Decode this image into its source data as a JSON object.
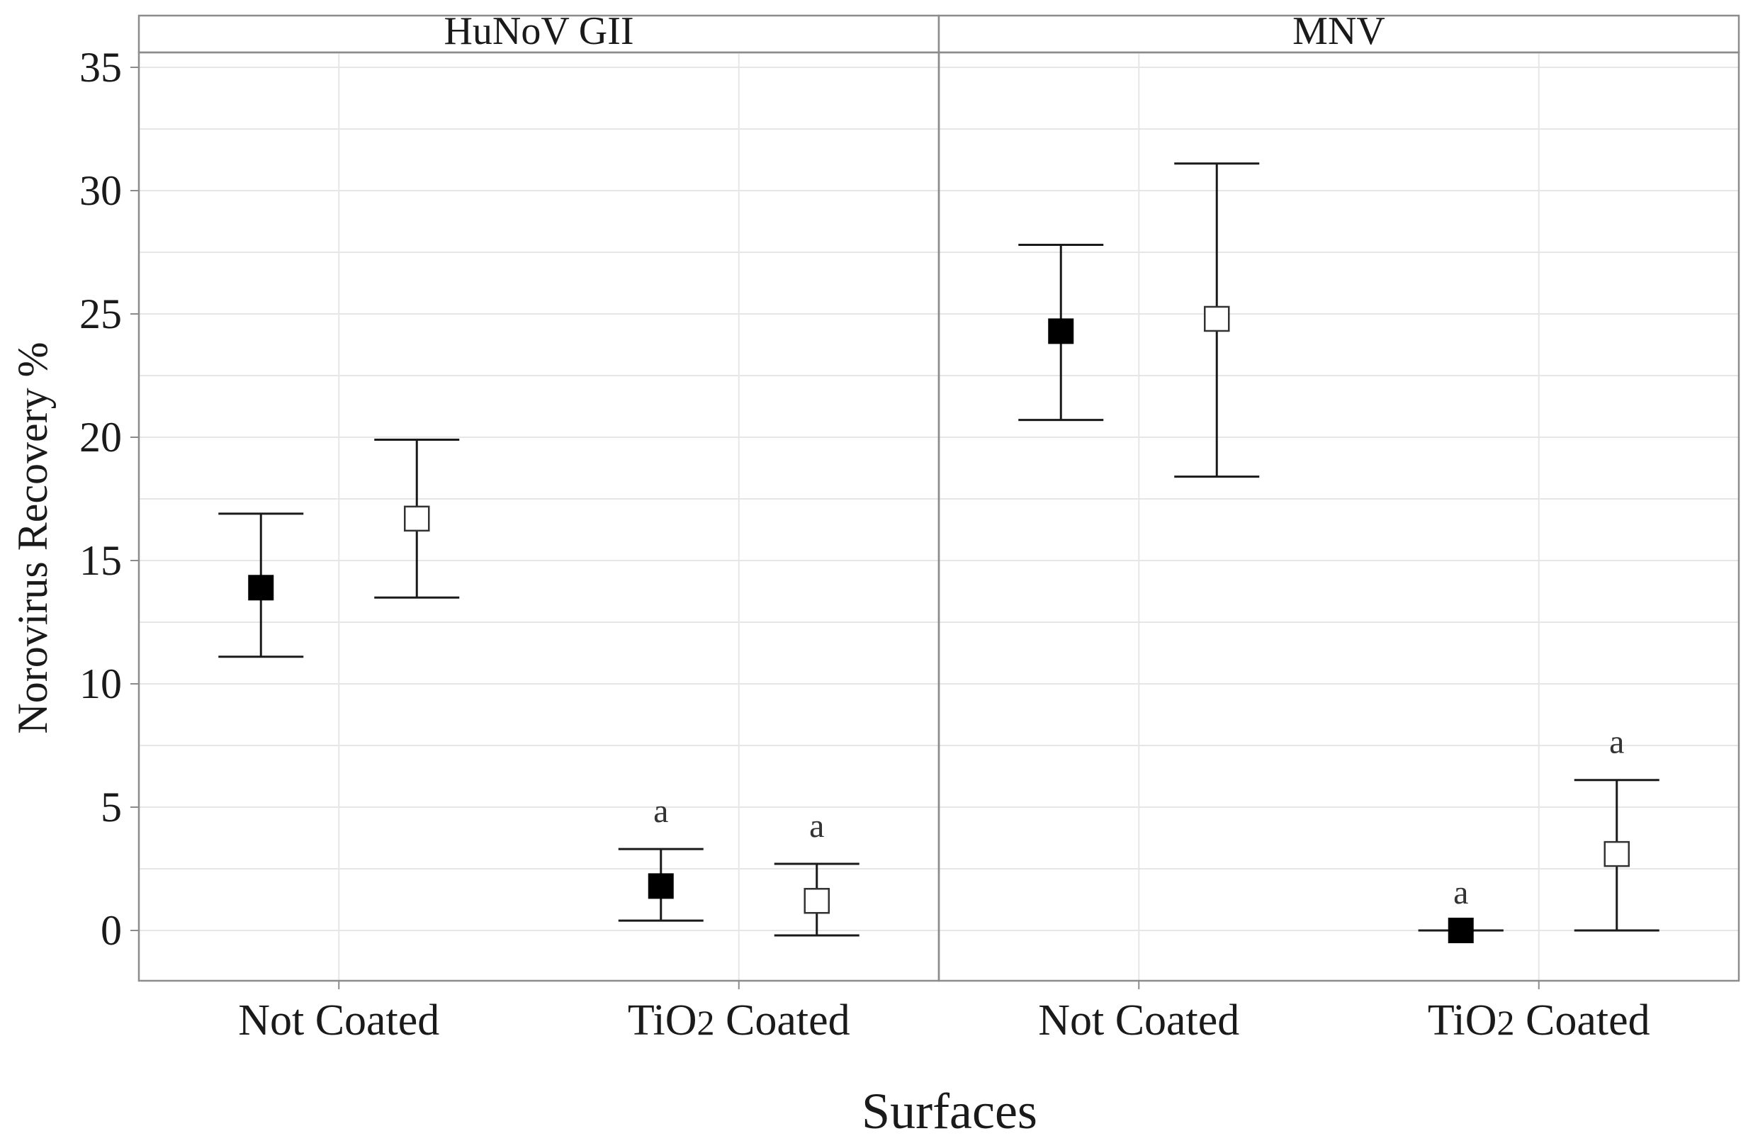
{
  "chart_data": {
    "type": "scatter",
    "ylabel": "Norovirus Recovery %",
    "xlabel": "Surfaces",
    "ylim": [
      -2,
      35.5
    ],
    "y_ticks": [
      0,
      5,
      10,
      15,
      20,
      25,
      30,
      35
    ],
    "grid": true,
    "categories": [
      "Not Coated",
      "TiO2 Coated"
    ],
    "panels": [
      {
        "title": "HuNoV GII",
        "groups": [
          {
            "category": "Not Coated",
            "points": [
              {
                "marker": "filled",
                "mean": 13.9,
                "lower": 11.1,
                "upper": 16.9,
                "label": ""
              },
              {
                "marker": "open",
                "mean": 16.7,
                "lower": 13.5,
                "upper": 19.9,
                "label": ""
              }
            ]
          },
          {
            "category": "TiO2 Coated",
            "points": [
              {
                "marker": "filled",
                "mean": 1.8,
                "lower": 0.4,
                "upper": 3.3,
                "label": "a"
              },
              {
                "marker": "open",
                "mean": 1.2,
                "lower": -0.2,
                "upper": 2.7,
                "label": "a"
              }
            ]
          }
        ]
      },
      {
        "title": "MNV",
        "groups": [
          {
            "category": "Not Coated",
            "points": [
              {
                "marker": "filled",
                "mean": 24.3,
                "lower": 20.7,
                "upper": 27.8,
                "label": ""
              },
              {
                "marker": "open",
                "mean": 24.8,
                "lower": 18.4,
                "upper": 31.1,
                "label": ""
              }
            ]
          },
          {
            "category": "TiO2 Coated",
            "points": [
              {
                "marker": "filled",
                "mean": 0.0,
                "lower": 0.0,
                "upper": 0.0,
                "label": "a"
              },
              {
                "marker": "open",
                "mean": 3.1,
                "lower": 0.0,
                "upper": 6.1,
                "label": "a"
              }
            ]
          }
        ]
      }
    ]
  }
}
